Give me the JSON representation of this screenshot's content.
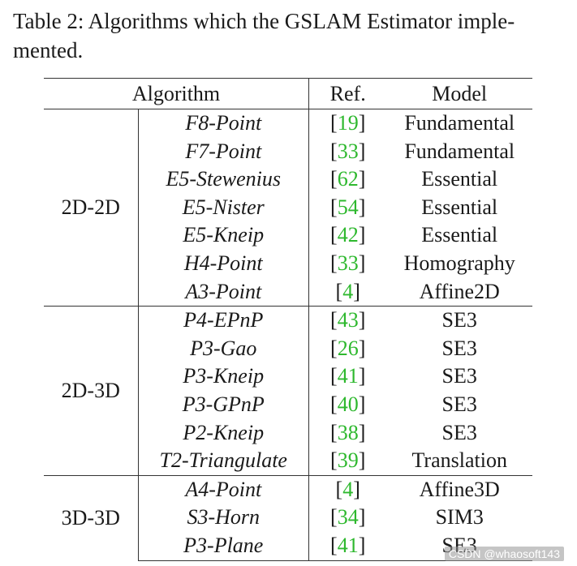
{
  "caption": {
    "line1": "Table 2: Algorithms which the GSLAM Estimator imple-",
    "line2": "mented."
  },
  "table": {
    "headers": {
      "algorithm": "Algorithm",
      "ref": "Ref.",
      "model": "Model"
    },
    "groups": [
      {
        "label": "2D-2D",
        "rows": [
          {
            "name": "F8-Point",
            "ref_open": "[",
            "ref_num": "19",
            "ref_close": "]",
            "model": "Fundamental"
          },
          {
            "name": "F7-Point",
            "ref_open": "[",
            "ref_num": "33",
            "ref_close": "]",
            "model": "Fundamental"
          },
          {
            "name": "E5-Stewenius",
            "ref_open": "[",
            "ref_num": "62",
            "ref_close": "]",
            "model": "Essential"
          },
          {
            "name": "E5-Nister",
            "ref_open": "[",
            "ref_num": "54",
            "ref_close": "]",
            "model": "Essential"
          },
          {
            "name": "E5-Kneip",
            "ref_open": "[",
            "ref_num": "42",
            "ref_close": "]",
            "model": "Essential"
          },
          {
            "name": "H4-Point",
            "ref_open": "[",
            "ref_num": "33",
            "ref_close": "]",
            "model": "Homography"
          },
          {
            "name": "A3-Point",
            "ref_open": "[",
            "ref_num": "4",
            "ref_close": "]",
            "model": "Affine2D"
          }
        ]
      },
      {
        "label": "2D-3D",
        "rows": [
          {
            "name": "P4-EPnP",
            "ref_open": "[",
            "ref_num": "43",
            "ref_close": "]",
            "model": "SE3"
          },
          {
            "name": "P3-Gao",
            "ref_open": "[",
            "ref_num": "26",
            "ref_close": "]",
            "model": "SE3"
          },
          {
            "name": "P3-Kneip",
            "ref_open": "[",
            "ref_num": "41",
            "ref_close": "]",
            "model": "SE3"
          },
          {
            "name": "P3-GPnP",
            "ref_open": "[",
            "ref_num": "40",
            "ref_close": "]",
            "model": "SE3"
          },
          {
            "name": "P2-Kneip",
            "ref_open": "[",
            "ref_num": "38",
            "ref_close": "]",
            "model": "SE3"
          },
          {
            "name": "T2-Triangulate",
            "ref_open": "[",
            "ref_num": "39",
            "ref_close": "]",
            "model": "Translation"
          }
        ]
      },
      {
        "label": "3D-3D",
        "rows": [
          {
            "name": "A4-Point",
            "ref_open": "[",
            "ref_num": "4",
            "ref_close": "]",
            "model": "Affine3D"
          },
          {
            "name": "S3-Horn",
            "ref_open": "[",
            "ref_num": "34",
            "ref_close": "]",
            "model": "SIM3"
          },
          {
            "name": "P3-Plane",
            "ref_open": "[",
            "ref_num": "41",
            "ref_close": "]",
            "model": "SE3"
          }
        ]
      }
    ]
  },
  "watermark": "CSDN @whaosoft143"
}
